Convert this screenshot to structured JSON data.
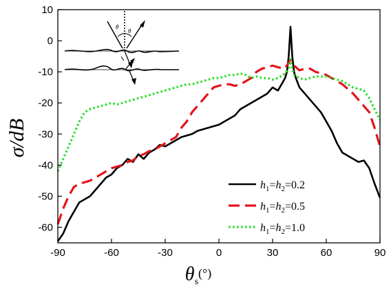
{
  "chart_data": {
    "type": "line",
    "title": "",
    "xlabel": {
      "symbol": "θ",
      "subscript": "s",
      "unit": "(°)"
    },
    "ylabel": "σ/dB",
    "xlim": [
      -90,
      90
    ],
    "ylim": [
      -65,
      10
    ],
    "xticks": [
      -90,
      -60,
      -30,
      0,
      30,
      60,
      90
    ],
    "yticks": [
      10,
      0,
      -10,
      -20,
      -30,
      -40,
      -50,
      -60
    ],
    "grid": false,
    "legend_position": "bottom-right",
    "series": [
      {
        "legend": {
          "var1": "h",
          "sub1": "1",
          "var2": "h",
          "sub2": "2",
          "value": "0.2"
        },
        "color": "#000000",
        "dash": "solid",
        "x": [
          -90,
          -87,
          -84,
          -81,
          -78,
          -75,
          -72,
          -69,
          -66,
          -63,
          -60,
          -57,
          -54,
          -51,
          -48,
          -45,
          -42,
          -39,
          -36,
          -33,
          -30,
          -27,
          -24,
          -21,
          -18,
          -15,
          -12,
          -9,
          -6,
          -3,
          0,
          3,
          6,
          9,
          12,
          15,
          18,
          21,
          24,
          27,
          30,
          33,
          35,
          37,
          38,
          39,
          40,
          41,
          42,
          43,
          45,
          48,
          51,
          54,
          57,
          60,
          63,
          66,
          69,
          72,
          75,
          78,
          81,
          84,
          87,
          90
        ],
        "y": [
          -64.5,
          -62,
          -58,
          -55,
          -52,
          -51,
          -50,
          -48,
          -46,
          -44,
          -43,
          -41,
          -40,
          -38,
          -39,
          -36.5,
          -38,
          -36,
          -35,
          -33.5,
          -34,
          -33,
          -32,
          -31,
          -30.5,
          -30,
          -29,
          -28.5,
          -28,
          -27.5,
          -27,
          -26,
          -25,
          -24,
          -22,
          -21,
          -20,
          -19,
          -18,
          -17,
          -15,
          -16,
          -14,
          -12,
          -10,
          -5,
          4.5,
          -5,
          -10,
          -12,
          -15,
          -17,
          -19,
          -21,
          -23,
          -26,
          -29,
          -33,
          -36,
          -37,
          -38,
          -39,
          -38.5,
          -41,
          -46,
          -50.5
        ]
      },
      {
        "legend": {
          "var1": "h",
          "sub1": "1",
          "var2": "h",
          "sub2": "2",
          "value": "0.5"
        },
        "color": "#e4141b",
        "dash": "dashed",
        "x": [
          -90,
          -87,
          -84,
          -81,
          -78,
          -75,
          -72,
          -69,
          -66,
          -63,
          -60,
          -57,
          -54,
          -51,
          -48,
          -45,
          -42,
          -39,
          -36,
          -33,
          -30,
          -27,
          -24,
          -21,
          -18,
          -15,
          -12,
          -9,
          -6,
          -3,
          0,
          3,
          6,
          9,
          12,
          15,
          18,
          21,
          24,
          27,
          30,
          33,
          36,
          38,
          40,
          42,
          45,
          48,
          51,
          54,
          57,
          60,
          63,
          66,
          69,
          72,
          75,
          78,
          81,
          84,
          87,
          90
        ],
        "y": [
          -59,
          -54,
          -50,
          -47,
          -46,
          -45.5,
          -45,
          -44,
          -43,
          -42,
          -41,
          -40.5,
          -40,
          -39,
          -38.5,
          -37,
          -36.5,
          -35.5,
          -35,
          -34,
          -33,
          -32,
          -31,
          -28,
          -26,
          -23,
          -21,
          -19,
          -17,
          -15,
          -14.5,
          -14,
          -14,
          -14.5,
          -14,
          -13,
          -12,
          -10,
          -9,
          -8.5,
          -8,
          -8.5,
          -9,
          -8,
          -6,
          -8,
          -9.5,
          -9,
          -9,
          -10,
          -10.5,
          -11,
          -12,
          -13,
          -14,
          -15.5,
          -17,
          -19,
          -21,
          -23,
          -28,
          -34
        ]
      },
      {
        "legend": {
          "var1": "h",
          "sub1": "1",
          "var2": "h",
          "sub2": "2",
          "value": "1.0"
        },
        "color": "#22dd22",
        "dash": "dotted",
        "x": [
          -90,
          -87,
          -84,
          -81,
          -78,
          -75,
          -72,
          -69,
          -66,
          -63,
          -60,
          -57,
          -54,
          -51,
          -48,
          -45,
          -42,
          -39,
          -36,
          -33,
          -30,
          -27,
          -24,
          -21,
          -18,
          -15,
          -12,
          -9,
          -6,
          -3,
          0,
          3,
          6,
          9,
          12,
          15,
          18,
          21,
          24,
          27,
          30,
          33,
          36,
          39,
          40,
          41,
          42,
          45,
          48,
          51,
          54,
          57,
          60,
          63,
          66,
          69,
          72,
          75,
          78,
          81,
          84,
          87,
          90
        ],
        "y": [
          -42,
          -38,
          -34,
          -30,
          -26,
          -23,
          -22,
          -21.5,
          -21,
          -20.5,
          -20,
          -20.5,
          -20,
          -19.5,
          -19,
          -18.5,
          -18,
          -17.5,
          -17,
          -16.5,
          -16,
          -15.5,
          -15,
          -14.5,
          -14,
          -14,
          -13.5,
          -13,
          -12.5,
          -12,
          -12,
          -11.5,
          -11,
          -11,
          -10.5,
          -11,
          -12,
          -11.5,
          -12,
          -12,
          -12.5,
          -12,
          -11,
          -9,
          -6,
          -9,
          -11,
          -12,
          -12.5,
          -12,
          -11.5,
          -11.5,
          -11.5,
          -12,
          -12.5,
          -13,
          -14,
          -15,
          -15.5,
          -16,
          -18.5,
          -22,
          -25.5
        ]
      }
    ]
  }
}
